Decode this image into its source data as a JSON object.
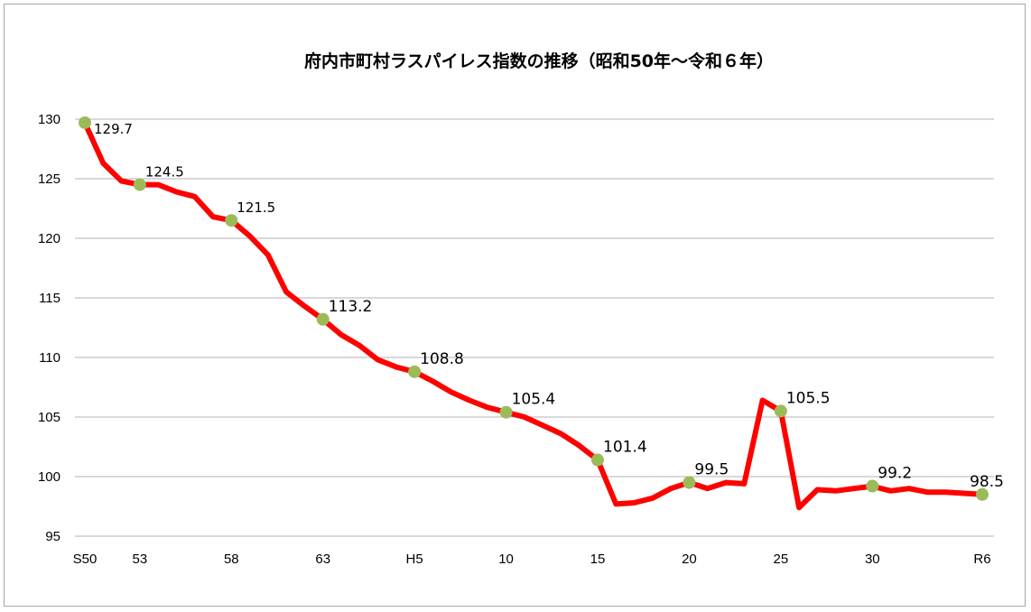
{
  "chart_data": {
    "type": "line",
    "title": "府内市町村ラスパイレス指数の推移（昭和50年～令和６年）",
    "xlabel": "",
    "ylabel": "",
    "ylim": [
      95,
      130
    ],
    "yticks": [
      95,
      100,
      105,
      110,
      115,
      120,
      125,
      130
    ],
    "grid": true,
    "legend": "none",
    "line_color": "#ff0000",
    "marker_color": "#9bbb59",
    "x_tick_labels": [
      {
        "index": 0,
        "label": "S50"
      },
      {
        "index": 3,
        "label": "53"
      },
      {
        "index": 8,
        "label": "58"
      },
      {
        "index": 13,
        "label": "63"
      },
      {
        "index": 18,
        "label": "H5"
      },
      {
        "index": 23,
        "label": "10"
      },
      {
        "index": 28,
        "label": "15"
      },
      {
        "index": 33,
        "label": "20"
      },
      {
        "index": 38,
        "label": "25"
      },
      {
        "index": 43,
        "label": "30"
      },
      {
        "index": 49,
        "label": "R6"
      }
    ],
    "series": [
      {
        "values": [
          129.7,
          126.3,
          124.8,
          124.5,
          124.5,
          123.9,
          123.5,
          121.8,
          121.5,
          120.2,
          118.6,
          115.5,
          114.3,
          113.2,
          111.9,
          111.0,
          109.8,
          109.2,
          108.8,
          108.0,
          107.1,
          106.4,
          105.8,
          105.4,
          105.0,
          104.3,
          103.6,
          102.6,
          101.4,
          97.7,
          97.8,
          98.2,
          99.0,
          99.5,
          99.0,
          99.5,
          99.4,
          106.4,
          105.5,
          97.4,
          98.9,
          98.8,
          99.0,
          99.2,
          98.8,
          99.0,
          98.7,
          98.7,
          98.6,
          98.5
        ]
      }
    ],
    "data_labels": [
      {
        "index": 0,
        "text": "129.7"
      },
      {
        "index": 3,
        "text": "124.5"
      },
      {
        "index": 8,
        "text": "121.5"
      },
      {
        "index": 13,
        "text": "113.2"
      },
      {
        "index": 18,
        "text": "108.8"
      },
      {
        "index": 23,
        "text": "105.4"
      },
      {
        "index": 28,
        "text": "101.4"
      },
      {
        "index": 33,
        "text": "99.5"
      },
      {
        "index": 38,
        "text": "105.5"
      },
      {
        "index": 43,
        "text": "99.2"
      },
      {
        "index": 49,
        "text": "98.5"
      }
    ]
  }
}
